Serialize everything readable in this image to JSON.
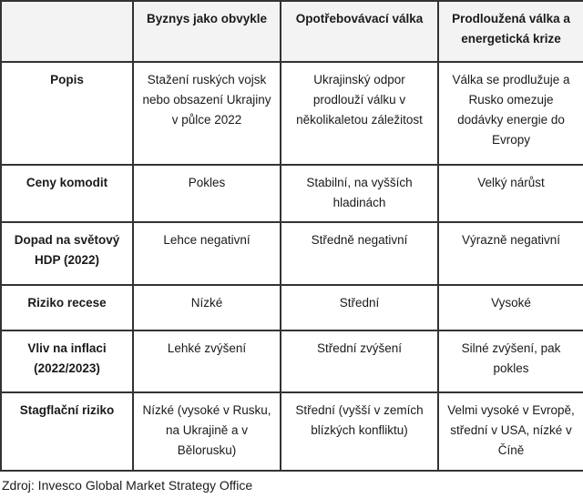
{
  "table": {
    "columns": [
      "",
      "Byznys jako obvykle",
      "Opotřebovávací válka",
      "Prodloužená válka a\nenergetická krize"
    ],
    "rows": [
      {
        "label": "Popis",
        "cells": [
          "Stažení ruských vojsk\nnebo obsazení Ukrajiny\nv půlce 2022",
          "Ukrajinský odpor\nprodlouží válku v\nněkolikaletou záležitost",
          "Válka se prodlužuje a\nRusko omezuje\ndodávky energie do\nEvropy"
        ]
      },
      {
        "label": "Ceny komodit",
        "cells": [
          "Pokles",
          "Stabilní, na vyšších\nhladinách",
          "Velký nárůst"
        ]
      },
      {
        "label": "Dopad na světový\nHDP (2022)",
        "cells": [
          "Lehce negativní",
          "Středně negativní",
          "Výrazně negativní"
        ]
      },
      {
        "label": "Riziko recese",
        "cells": [
          "Nízké",
          "Střední",
          "Vysoké"
        ]
      },
      {
        "label": "Vliv na inflaci\n(2022/2023)",
        "cells": [
          "Lehké zvýšení",
          "Střední zvýšení",
          "Silné zvýšení, pak\npokles"
        ]
      },
      {
        "label": "Stagflační riziko",
        "cells": [
          "Nízké (vysoké v Rusku,\nna Ukrajině a v\nBělorusku)",
          "Střední (vyšší v zemích\nblízkých konfliktu)",
          "Velmi vysoké v Evropě,\nstřední v USA, nízké v\nČíně"
        ]
      }
    ]
  },
  "footer": {
    "source": "Zdroj: Invesco Global Market Strategy Office"
  },
  "colors": {
    "border": "#333333",
    "header_bg": "#f3f3f3",
    "text": "#1a1a1a",
    "background": "#ffffff"
  }
}
